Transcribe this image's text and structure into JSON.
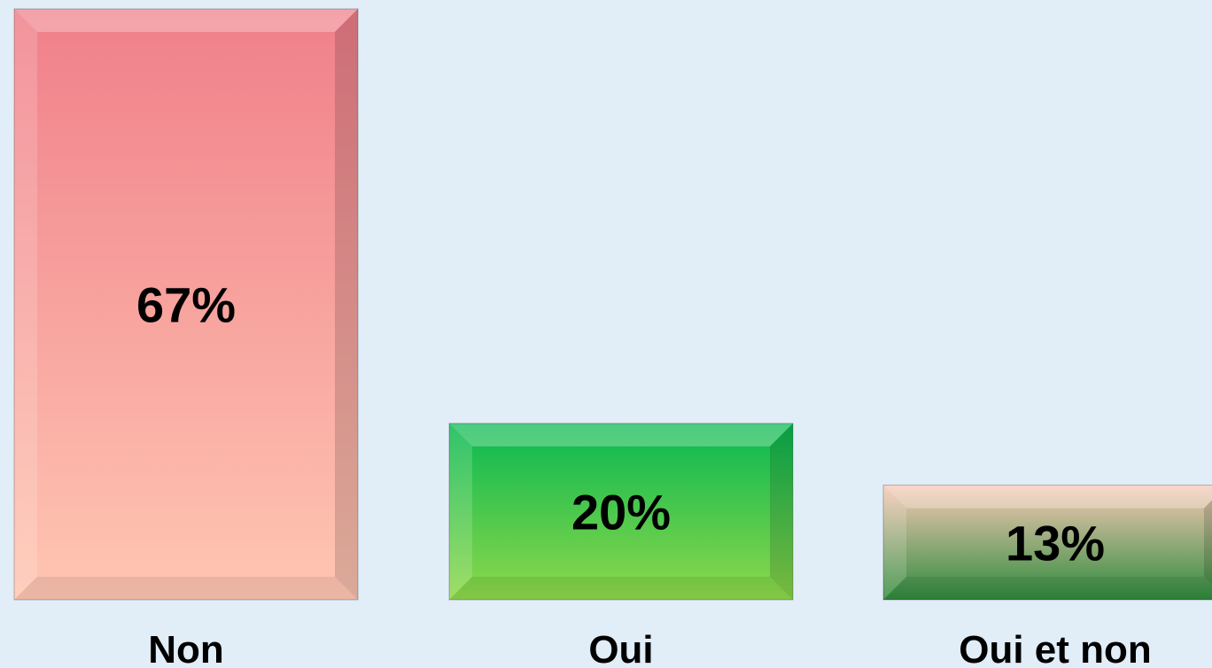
{
  "chart_data": {
    "type": "bar",
    "categories": [
      "Non",
      "Oui",
      "Oui et non"
    ],
    "values": [
      67,
      20,
      13
    ],
    "value_labels": [
      "67%",
      "20%",
      "13%"
    ],
    "ylim": [
      0,
      67
    ],
    "grid": false,
    "legend": "none",
    "bar_colors": [
      {
        "top": "#f07f8a",
        "bottom": "#ffc6b2"
      },
      {
        "top": "#07b851",
        "bottom": "#8fd84a"
      },
      {
        "top": "#f8c9b6",
        "bottom": "#2e8b3c"
      }
    ]
  }
}
